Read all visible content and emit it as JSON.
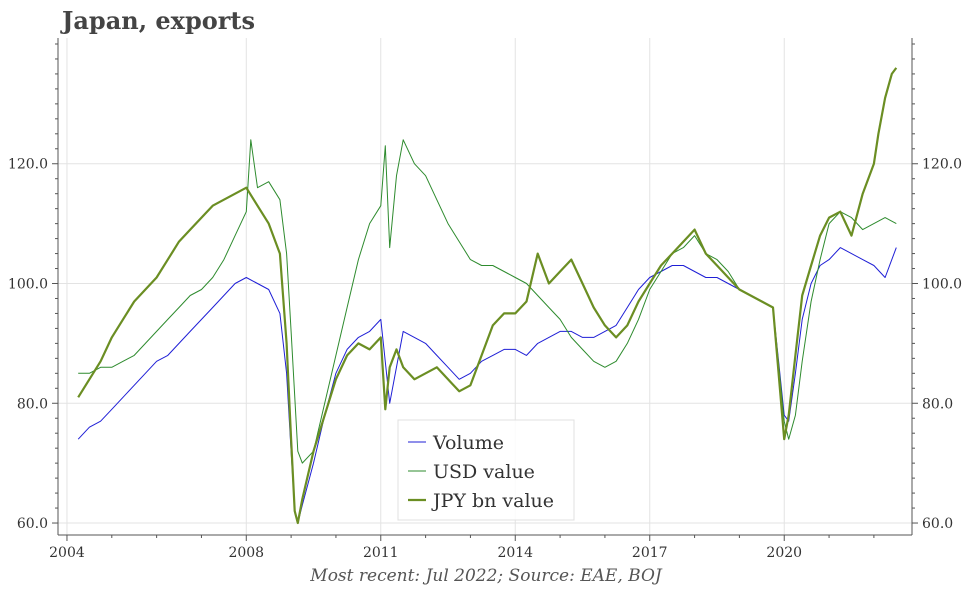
{
  "title": "Japan, exports",
  "source": "Most recent: Jul 2022; Source: EAE, BOJ",
  "chart_data": {
    "type": "line",
    "title": "Japan, exports",
    "xlim": [
      2003.8,
      2022.85
    ],
    "ylim": [
      58,
      141
    ],
    "x_ticks": [
      2004,
      2008,
      2011,
      2014,
      2017,
      2020
    ],
    "x_tick_labels": [
      "2004",
      "2008",
      "2011",
      "2014",
      "2017",
      "2020"
    ],
    "y_ticks": [
      60,
      80,
      100,
      120
    ],
    "y_tick_labels": [
      "60.0",
      "80.0",
      "100.0",
      "120.0"
    ],
    "grid": true,
    "legend_position": "bottom-center",
    "series": [
      {
        "name": "Volume",
        "color": "#1f1fd6",
        "linewidth": 1,
        "x": [
          2004.25,
          2004.5,
          2004.75,
          2005.0,
          2005.25,
          2005.5,
          2005.75,
          2006.0,
          2006.25,
          2006.5,
          2006.75,
          2007.0,
          2007.25,
          2007.5,
          2007.75,
          2008.0,
          2008.25,
          2008.5,
          2008.75,
          2008.9,
          2009.0,
          2009.08,
          2009.15,
          2009.25,
          2009.5,
          2009.75,
          2010.0,
          2010.25,
          2010.5,
          2010.75,
          2011.0,
          2011.2,
          2011.5,
          2011.75,
          2012.0,
          2012.25,
          2012.5,
          2012.75,
          2013.0,
          2013.25,
          2013.5,
          2013.75,
          2014.0,
          2014.25,
          2014.5,
          2014.75,
          2015.0,
          2015.25,
          2015.5,
          2015.75,
          2016.0,
          2016.25,
          2016.5,
          2016.75,
          2017.0,
          2017.25,
          2017.5,
          2017.75,
          2018.0,
          2018.25,
          2018.5,
          2018.75,
          2019.0,
          2019.25,
          2019.5,
          2019.75,
          2020.0,
          2020.1,
          2020.25,
          2020.4,
          2020.6,
          2020.8,
          2021.0,
          2021.25,
          2021.5,
          2021.75,
          2022.0,
          2022.25,
          2022.5
        ],
        "y": [
          74,
          76,
          77,
          79,
          81,
          83,
          85,
          87,
          88,
          90,
          92,
          94,
          96,
          98,
          100,
          101,
          100,
          99,
          95,
          85,
          72,
          62,
          60,
          63,
          70,
          78,
          85,
          89,
          91,
          92,
          94,
          80,
          92,
          91,
          90,
          88,
          86,
          84,
          85,
          87,
          88,
          89,
          89,
          88,
          90,
          91,
          92,
          92,
          91,
          91,
          92,
          93,
          96,
          99,
          101,
          102,
          103,
          103,
          102,
          101,
          101,
          100,
          99,
          98,
          97,
          96,
          78,
          77,
          85,
          94,
          100,
          103,
          104,
          106,
          105,
          104,
          103,
          101,
          106
        ]
      },
      {
        "name": "USD value",
        "color": "#2e8b2e",
        "linewidth": 1,
        "x": [
          2004.25,
          2004.5,
          2004.75,
          2005.0,
          2005.25,
          2005.5,
          2005.75,
          2006.0,
          2006.25,
          2006.5,
          2006.75,
          2007.0,
          2007.25,
          2007.5,
          2007.75,
          2008.0,
          2008.1,
          2008.25,
          2008.5,
          2008.75,
          2008.9,
          2009.0,
          2009.15,
          2009.25,
          2009.5,
          2009.75,
          2010.0,
          2010.25,
          2010.5,
          2010.75,
          2011.0,
          2011.1,
          2011.2,
          2011.35,
          2011.5,
          2011.75,
          2012.0,
          2012.25,
          2012.5,
          2012.75,
          2013.0,
          2013.25,
          2013.5,
          2013.75,
          2014.0,
          2014.25,
          2014.5,
          2014.75,
          2015.0,
          2015.25,
          2015.5,
          2015.75,
          2016.0,
          2016.25,
          2016.5,
          2016.75,
          2017.0,
          2017.25,
          2017.5,
          2017.75,
          2018.0,
          2018.25,
          2018.5,
          2018.75,
          2019.0,
          2019.25,
          2019.5,
          2019.75,
          2020.0,
          2020.1,
          2020.25,
          2020.4,
          2020.6,
          2020.8,
          2021.0,
          2021.25,
          2021.5,
          2021.75,
          2022.0,
          2022.25,
          2022.5
        ],
        "y": [
          85,
          85,
          86,
          86,
          87,
          88,
          90,
          92,
          94,
          96,
          98,
          99,
          101,
          104,
          108,
          112,
          124,
          116,
          117,
          114,
          105,
          92,
          72,
          70,
          72,
          80,
          88,
          96,
          104,
          110,
          113,
          123,
          106,
          118,
          124,
          120,
          118,
          114,
          110,
          107,
          104,
          103,
          103,
          102,
          101,
          100,
          98,
          96,
          94,
          91,
          89,
          87,
          86,
          87,
          90,
          94,
          99,
          102,
          105,
          106,
          108,
          105,
          104,
          102,
          99,
          98,
          97,
          96,
          77,
          74,
          78,
          87,
          97,
          104,
          110,
          112,
          111,
          109,
          110,
          111,
          110
        ]
      },
      {
        "name": "JPY bn value",
        "color": "#6b8e23",
        "linewidth": 2.2,
        "x": [
          2004.25,
          2004.5,
          2004.75,
          2005.0,
          2005.25,
          2005.5,
          2005.75,
          2006.0,
          2006.25,
          2006.5,
          2006.75,
          2007.0,
          2007.25,
          2007.5,
          2007.75,
          2008.0,
          2008.25,
          2008.5,
          2008.75,
          2008.9,
          2009.0,
          2009.08,
          2009.15,
          2009.25,
          2009.5,
          2009.75,
          2010.0,
          2010.25,
          2010.5,
          2010.75,
          2011.0,
          2011.1,
          2011.2,
          2011.35,
          2011.5,
          2011.75,
          2012.0,
          2012.25,
          2012.5,
          2012.75,
          2013.0,
          2013.25,
          2013.5,
          2013.75,
          2014.0,
          2014.25,
          2014.5,
          2014.75,
          2015.0,
          2015.25,
          2015.5,
          2015.75,
          2016.0,
          2016.25,
          2016.5,
          2016.75,
          2017.0,
          2017.25,
          2017.5,
          2017.75,
          2018.0,
          2018.25,
          2018.5,
          2018.75,
          2019.0,
          2019.25,
          2019.5,
          2019.75,
          2020.0,
          2020.1,
          2020.25,
          2020.4,
          2020.6,
          2020.8,
          2021.0,
          2021.25,
          2021.5,
          2021.75,
          2022.0,
          2022.1,
          2022.25,
          2022.4,
          2022.5
        ],
        "y": [
          81,
          84,
          87,
          91,
          94,
          97,
          99,
          101,
          104,
          107,
          109,
          111,
          113,
          114,
          115,
          116,
          113,
          110,
          105,
          90,
          74,
          62,
          60,
          64,
          72,
          78,
          84,
          88,
          90,
          89,
          91,
          79,
          86,
          89,
          86,
          84,
          85,
          86,
          84,
          82,
          83,
          88,
          93,
          95,
          95,
          97,
          105,
          100,
          102,
          104,
          100,
          96,
          93,
          91,
          93,
          97,
          100,
          103,
          105,
          107,
          109,
          105,
          103,
          101,
          99,
          98,
          97,
          96,
          74,
          78,
          88,
          98,
          103,
          108,
          111,
          112,
          108,
          115,
          120,
          125,
          131,
          135,
          136
        ]
      }
    ]
  }
}
